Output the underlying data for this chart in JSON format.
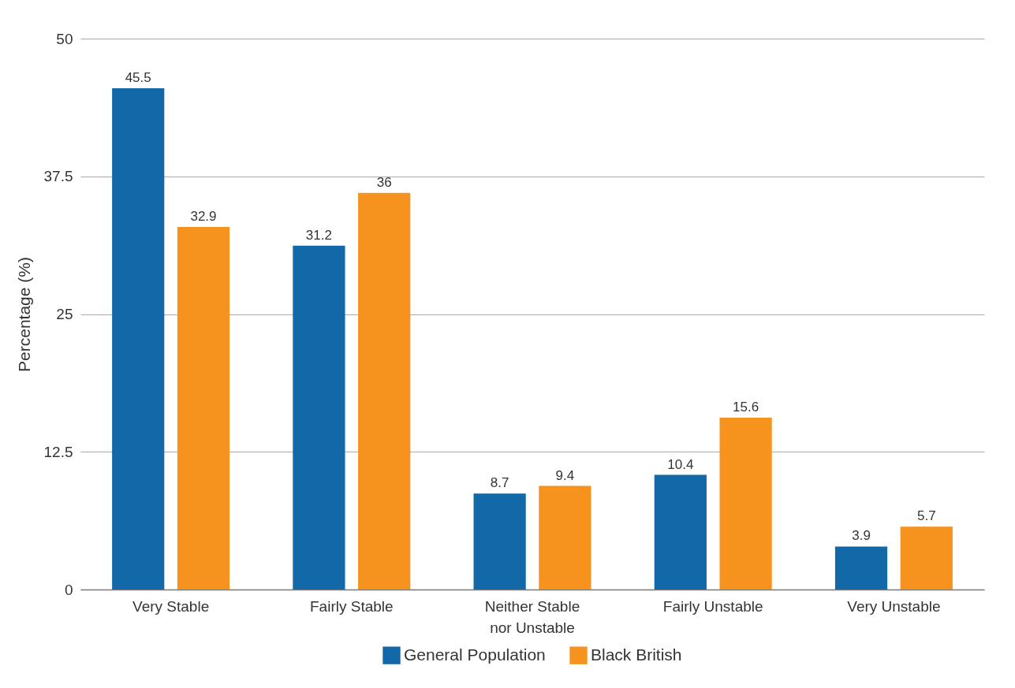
{
  "chart_data": {
    "type": "bar",
    "ylabel": "Percentage (%)",
    "categories": [
      "Very Stable",
      "Fairly Stable",
      "Neither Stable\nnor Unstable",
      "Fairly Unstable",
      "Very Unstable"
    ],
    "series": [
      {
        "name": "General Population",
        "color": "#1368a8",
        "values": [
          45.5,
          31.2,
          8.7,
          10.4,
          3.9
        ]
      },
      {
        "name": "Black British",
        "color": "#f6921e",
        "values": [
          32.9,
          36,
          9.4,
          15.6,
          5.7
        ]
      }
    ],
    "ylim": [
      0,
      50
    ],
    "yticks": [
      0,
      12.5,
      25,
      37.5,
      50
    ],
    "grid": "y",
    "legend": "bottom",
    "data_labels": true
  }
}
